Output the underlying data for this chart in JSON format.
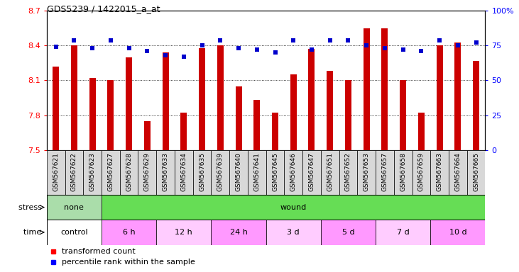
{
  "title": "GDS5239 / 1422015_a_at",
  "samples": [
    "GSM567621",
    "GSM567622",
    "GSM567623",
    "GSM567627",
    "GSM567628",
    "GSM567629",
    "GSM567633",
    "GSM567634",
    "GSM567635",
    "GSM567639",
    "GSM567640",
    "GSM567641",
    "GSM567645",
    "GSM567646",
    "GSM567647",
    "GSM567651",
    "GSM567652",
    "GSM567653",
    "GSM567657",
    "GSM567658",
    "GSM567659",
    "GSM567663",
    "GSM567664",
    "GSM567665"
  ],
  "bar_values": [
    8.22,
    8.4,
    8.12,
    8.1,
    8.3,
    7.75,
    8.34,
    7.82,
    8.38,
    8.4,
    8.05,
    7.93,
    7.82,
    8.15,
    8.37,
    8.18,
    8.1,
    8.55,
    8.55,
    8.1,
    7.82,
    8.4,
    8.43,
    8.27
  ],
  "dot_values": [
    74,
    79,
    73,
    79,
    73,
    71,
    68,
    67,
    75,
    79,
    73,
    72,
    70,
    79,
    72,
    79,
    79,
    75,
    73,
    72,
    71,
    79,
    75,
    77
  ],
  "ylim": [
    7.5,
    8.7
  ],
  "yticks": [
    7.5,
    7.8,
    8.1,
    8.4,
    8.7
  ],
  "ytick_labels": [
    "7.5",
    "7.8",
    "8.1",
    "8.4",
    "8.7"
  ],
  "y2ticks": [
    0,
    25,
    50,
    75,
    100
  ],
  "y2tick_labels": [
    "0",
    "25",
    "50",
    "75",
    "100%"
  ],
  "bar_color": "#cc0000",
  "dot_color": "#0000cc",
  "plot_bg": "#ffffff",
  "stress_row": [
    {
      "label": "none",
      "start": 0,
      "end": 3,
      "color": "#aaddaa"
    },
    {
      "label": "wound",
      "start": 3,
      "end": 24,
      "color": "#66dd55"
    }
  ],
  "time_row": [
    {
      "label": "control",
      "start": 0,
      "end": 3,
      "color": "#ffffff"
    },
    {
      "label": "6 h",
      "start": 3,
      "end": 6,
      "color": "#ff99ff"
    },
    {
      "label": "12 h",
      "start": 6,
      "end": 9,
      "color": "#ffccff"
    },
    {
      "label": "24 h",
      "start": 9,
      "end": 12,
      "color": "#ff99ff"
    },
    {
      "label": "3 d",
      "start": 12,
      "end": 15,
      "color": "#ffccff"
    },
    {
      "label": "5 d",
      "start": 15,
      "end": 18,
      "color": "#ff99ff"
    },
    {
      "label": "7 d",
      "start": 18,
      "end": 21,
      "color": "#ffccff"
    },
    {
      "label": "10 d",
      "start": 21,
      "end": 24,
      "color": "#ff99ff"
    }
  ]
}
